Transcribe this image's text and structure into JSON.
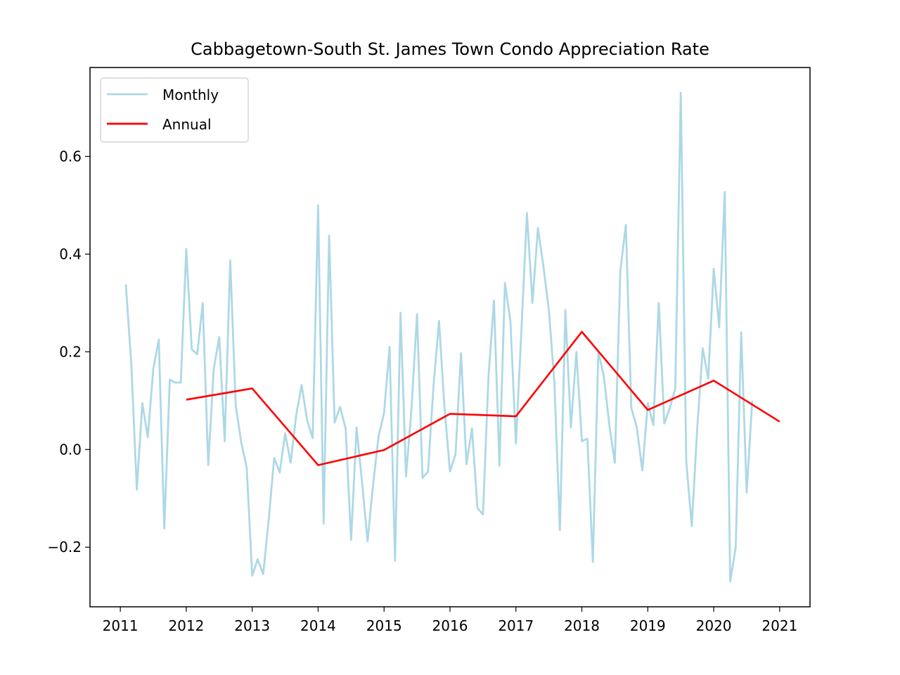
{
  "chart_data": {
    "type": "line",
    "title": "Cabbagetown-South St. James Town Condo Appreciation Rate",
    "xlabel": "",
    "ylabel": "",
    "xlim": [
      2010.54,
      2021.46
    ],
    "ylim": [
      -0.322,
      0.782
    ],
    "x_ticks": [
      2011,
      2012,
      2013,
      2014,
      2015,
      2016,
      2017,
      2018,
      2019,
      2020,
      2021
    ],
    "y_ticks": [
      -0.2,
      0.0,
      0.2,
      0.4,
      0.6
    ],
    "y_tick_labels": [
      "−0.2",
      "0.0",
      "0.2",
      "0.4",
      "0.6"
    ],
    "grid": false,
    "legend_position": "top-left",
    "series": [
      {
        "name": "Monthly",
        "color": "#add8e6",
        "x": [
          2011.0833,
          2011.1667,
          2011.25,
          2011.3333,
          2011.4167,
          2011.5,
          2011.5833,
          2011.6667,
          2011.75,
          2011.8333,
          2011.9167,
          2012.0,
          2012.0833,
          2012.1667,
          2012.25,
          2012.3333,
          2012.4167,
          2012.5,
          2012.5833,
          2012.6667,
          2012.75,
          2012.8333,
          2012.9167,
          2013.0,
          2013.0833,
          2013.1667,
          2013.25,
          2013.3333,
          2013.4167,
          2013.5,
          2013.5833,
          2013.6667,
          2013.75,
          2013.8333,
          2013.9167,
          2014.0,
          2014.0833,
          2014.1667,
          2014.25,
          2014.3333,
          2014.4167,
          2014.5,
          2014.5833,
          2014.6667,
          2014.75,
          2014.8333,
          2014.9167,
          2015.0,
          2015.0833,
          2015.1667,
          2015.25,
          2015.3333,
          2015.4167,
          2015.5,
          2015.5833,
          2015.6667,
          2015.75,
          2015.8333,
          2015.9167,
          2016.0,
          2016.0833,
          2016.1667,
          2016.25,
          2016.3333,
          2016.4167,
          2016.5,
          2016.5833,
          2016.6667,
          2016.75,
          2016.8333,
          2016.9167,
          2017.0,
          2017.0833,
          2017.1667,
          2017.25,
          2017.3333,
          2017.4167,
          2017.5,
          2017.5833,
          2017.6667,
          2017.75,
          2017.8333,
          2017.9167,
          2018.0,
          2018.0833,
          2018.1667,
          2018.25,
          2018.3333,
          2018.4167,
          2018.5,
          2018.5833,
          2018.6667,
          2018.75,
          2018.8333,
          2018.9167,
          2019.0,
          2019.0833,
          2019.1667,
          2019.25,
          2019.3333,
          2019.4167,
          2019.5,
          2019.5833,
          2019.6667,
          2019.75,
          2019.8333,
          2019.9167,
          2020.0,
          2020.0833,
          2020.1667,
          2020.25,
          2020.3333,
          2020.4167,
          2020.5,
          2020.5833
        ],
        "y": [
          0.338,
          0.175,
          -0.082,
          0.095,
          0.025,
          0.165,
          0.225,
          -0.162,
          0.143,
          0.137,
          0.137,
          0.41,
          0.205,
          0.195,
          0.3,
          -0.032,
          0.165,
          0.23,
          0.017,
          0.387,
          0.09,
          0.015,
          -0.037,
          -0.258,
          -0.225,
          -0.255,
          -0.145,
          -0.017,
          -0.047,
          0.033,
          -0.027,
          0.07,
          0.132,
          0.06,
          0.023,
          0.5,
          -0.152,
          0.438,
          0.055,
          0.087,
          0.043,
          -0.185,
          0.045,
          -0.068,
          -0.188,
          -0.072,
          0.027,
          0.075,
          0.21,
          -0.228,
          0.28,
          -0.055,
          0.085,
          0.277,
          -0.058,
          -0.045,
          0.13,
          0.263,
          0.085,
          -0.045,
          -0.01,
          0.197,
          -0.03,
          0.043,
          -0.12,
          -0.133,
          0.148,
          0.305,
          -0.033,
          0.341,
          0.262,
          0.012,
          0.245,
          0.484,
          0.3,
          0.453,
          0.375,
          0.285,
          0.137,
          -0.165,
          0.285,
          0.045,
          0.2,
          0.017,
          0.022,
          -0.23,
          0.2,
          0.15,
          0.05,
          -0.027,
          0.365,
          0.46,
          0.085,
          0.045,
          -0.043,
          0.095,
          0.05,
          0.3,
          0.053,
          0.085,
          0.125,
          0.73,
          -0.025,
          -0.157,
          0.045,
          0.207,
          0.145,
          0.37,
          0.25,
          0.527,
          -0.27,
          -0.2,
          0.24,
          -0.088,
          0.1
        ]
      },
      {
        "name": "Annual",
        "color": "#ff0000",
        "x": [
          2012,
          2013,
          2014,
          2015,
          2016,
          2017,
          2018,
          2019,
          2020,
          2021
        ],
        "y": [
          0.102,
          0.125,
          -0.032,
          -0.001,
          0.073,
          0.068,
          0.241,
          0.081,
          0.141,
          0.057
        ]
      }
    ]
  }
}
